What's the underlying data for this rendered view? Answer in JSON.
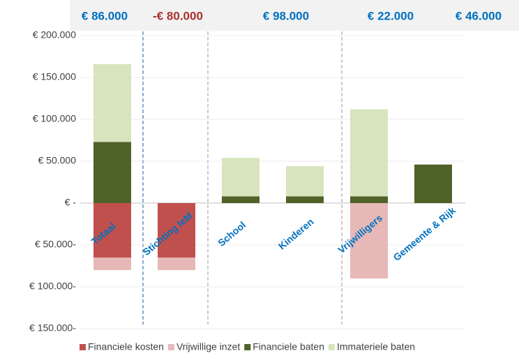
{
  "chart_data": {
    "type": "stacked_bar",
    "categories": [
      "Totaal",
      "Stichting IeM",
      "School",
      "Kinderen",
      "Vrijwilligers",
      "Gemeente & Rijk"
    ],
    "series": [
      {
        "name": "Financiele kosten",
        "color": "#c0504d",
        "values": [
          -65000,
          -65000,
          0,
          0,
          0,
          0
        ]
      },
      {
        "name": "Vrijwillige inzet",
        "color": "#e6b9b8",
        "values": [
          -15000,
          -15000,
          0,
          0,
          -90000,
          0
        ]
      },
      {
        "name": "Financiele baten",
        "color": "#4f6228",
        "values": [
          73000,
          0,
          8000,
          8000,
          8000,
          46000
        ]
      },
      {
        "name": "Immateriele baten",
        "color": "#d7e4bd",
        "values": [
          93000,
          0,
          46000,
          36000,
          104000,
          0
        ]
      }
    ],
    "ylim": [
      -150000,
      200000
    ],
    "yticks": [
      {
        "value": 200000,
        "label": "€ 200.000"
      },
      {
        "value": 150000,
        "label": "€ 150.000"
      },
      {
        "value": 100000,
        "label": "€ 100.000"
      },
      {
        "value": 50000,
        "label": "€ 50.000"
      },
      {
        "value": 0,
        "label": "€ -"
      },
      {
        "value": -50000,
        "label": "€ 50.000-"
      },
      {
        "value": -100000,
        "label": "€ 100.000-"
      },
      {
        "value": -150000,
        "label": "€ 150.000-"
      }
    ],
    "grid": true,
    "annotations": [
      {
        "text": "€ 86.000",
        "color": "#0070c0"
      },
      {
        "text": "-€ 80.000",
        "color": "#a8322d"
      },
      {
        "text": "€ 98.000",
        "color": "#0070c0"
      },
      {
        "text": "€ 22.000",
        "color": "#0070c0"
      },
      {
        "text": "€ 46.000",
        "color": "#0070c0"
      }
    ],
    "category_label_color": "#0070c0"
  }
}
